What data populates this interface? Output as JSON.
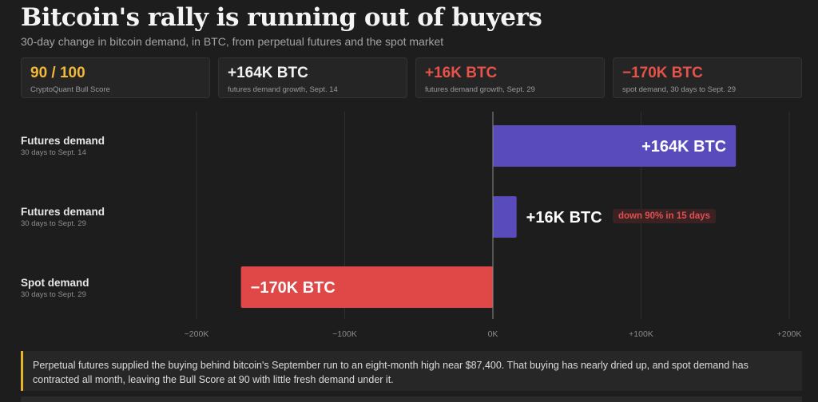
{
  "title": "Bitcoin's rally is running out of buyers",
  "subtitle": "30-day change in bitcoin demand, in BTC, from perpetual futures and the spot market",
  "cards": [
    {
      "value": "90 / 100",
      "label": "CryptoQuant Bull Score",
      "color": "#f2b93b"
    },
    {
      "value": "+164K BTC",
      "label": "futures demand growth, Sept. 14",
      "color": "#f2f2f2"
    },
    {
      "value": "+16K BTC",
      "label": "futures demand growth, Sept. 29",
      "color": "#e8524a"
    },
    {
      "value": "−170K BTC",
      "label": "spot demand, 30 days to Sept. 29",
      "color": "#e8524a"
    }
  ],
  "chart_data": {
    "type": "bar",
    "orientation": "horizontal",
    "categories": [
      {
        "name": "Futures demand",
        "sub": "30 days to Sept. 14"
      },
      {
        "name": "Futures demand",
        "sub": "30 days to Sept. 29"
      },
      {
        "name": "Spot demand",
        "sub": "30 days to Sept. 29"
      }
    ],
    "values": [
      164,
      16,
      -170
    ],
    "value_labels": [
      "+164K BTC",
      "+16K BTC",
      "−170K BTC"
    ],
    "colors": [
      "#5a4bbd",
      "#5a4bbd",
      "#e04848"
    ],
    "xlim": [
      -200,
      200
    ],
    "xticks": [
      -200,
      -100,
      0,
      100,
      200
    ],
    "xtick_labels": [
      "−200K",
      "−100K",
      "0K",
      "+100K",
      "+200K"
    ],
    "units": "thousand BTC",
    "grid": true,
    "annotation": "down 90% in 15 days"
  },
  "note": "Perpetual futures supplied the buying behind bitcoin's September run to an eight-month high near $87,400. That buying has nearly dried up, and spot demand has contracted all month, leaving the Bull Score at 90 with little fresh demand under it."
}
